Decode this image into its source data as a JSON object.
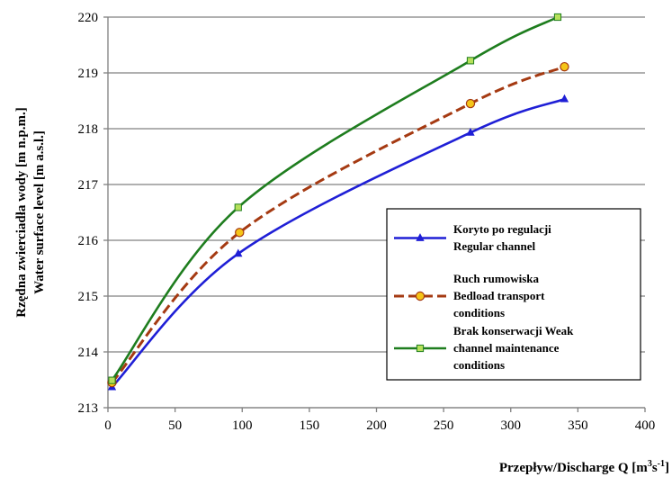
{
  "chart_data": {
    "type": "line",
    "title": "",
    "xlabel": "Przepływ/Discharge Q [m³s⁻¹]",
    "xlabel_parts": {
      "main": "Przepływ/Discharge Q [m",
      "sup1": "3",
      "mid": "s",
      "sup2": "-1",
      "end": "]"
    },
    "ylabel_lines": [
      "Rzędna zwierciadła wody [m n.p.m.]",
      "Water surface level [m a.s.l.]"
    ],
    "xlim": [
      0,
      400
    ],
    "ylim": [
      213,
      220
    ],
    "xticks": [
      0,
      50,
      100,
      150,
      200,
      250,
      300,
      350,
      400
    ],
    "yticks": [
      213,
      214,
      215,
      216,
      217,
      218,
      219,
      220
    ],
    "grid": "horizontal",
    "legend_position": "right",
    "series": [
      {
        "name": "Koryto po regulacji Regular channel",
        "legend_lines": [
          "Koryto po regulacji",
          "Regular channel"
        ],
        "color": "#1f1fd6",
        "line_style": "solid",
        "marker": "triangle",
        "x": [
          3,
          97,
          270,
          340
        ],
        "y": [
          213.37,
          215.76,
          217.93,
          218.53
        ]
      },
      {
        "name": "Ruch rumowiska Bedload transport conditions",
        "legend_lines": [
          "Ruch rumowiska",
          "Bedload transport",
          "conditions"
        ],
        "color": "#a53a12",
        "marker_fill": "#f5c518",
        "line_style": "dashed",
        "marker": "circle",
        "x": [
          3,
          98,
          270,
          340
        ],
        "y": [
          213.45,
          216.14,
          218.45,
          219.11
        ]
      },
      {
        "name": "Brak konserwacji Weak channel maintenance conditions",
        "legend_lines": [
          "Brak konserwacji Weak",
          "channel maintenance",
          "conditions"
        ],
        "color": "#1e7d1e",
        "marker_fill": "#b6e05a",
        "line_style": "solid",
        "marker": "square",
        "x": [
          3,
          97,
          270,
          335
        ],
        "y": [
          213.49,
          216.59,
          219.22,
          220.0
        ]
      }
    ]
  }
}
